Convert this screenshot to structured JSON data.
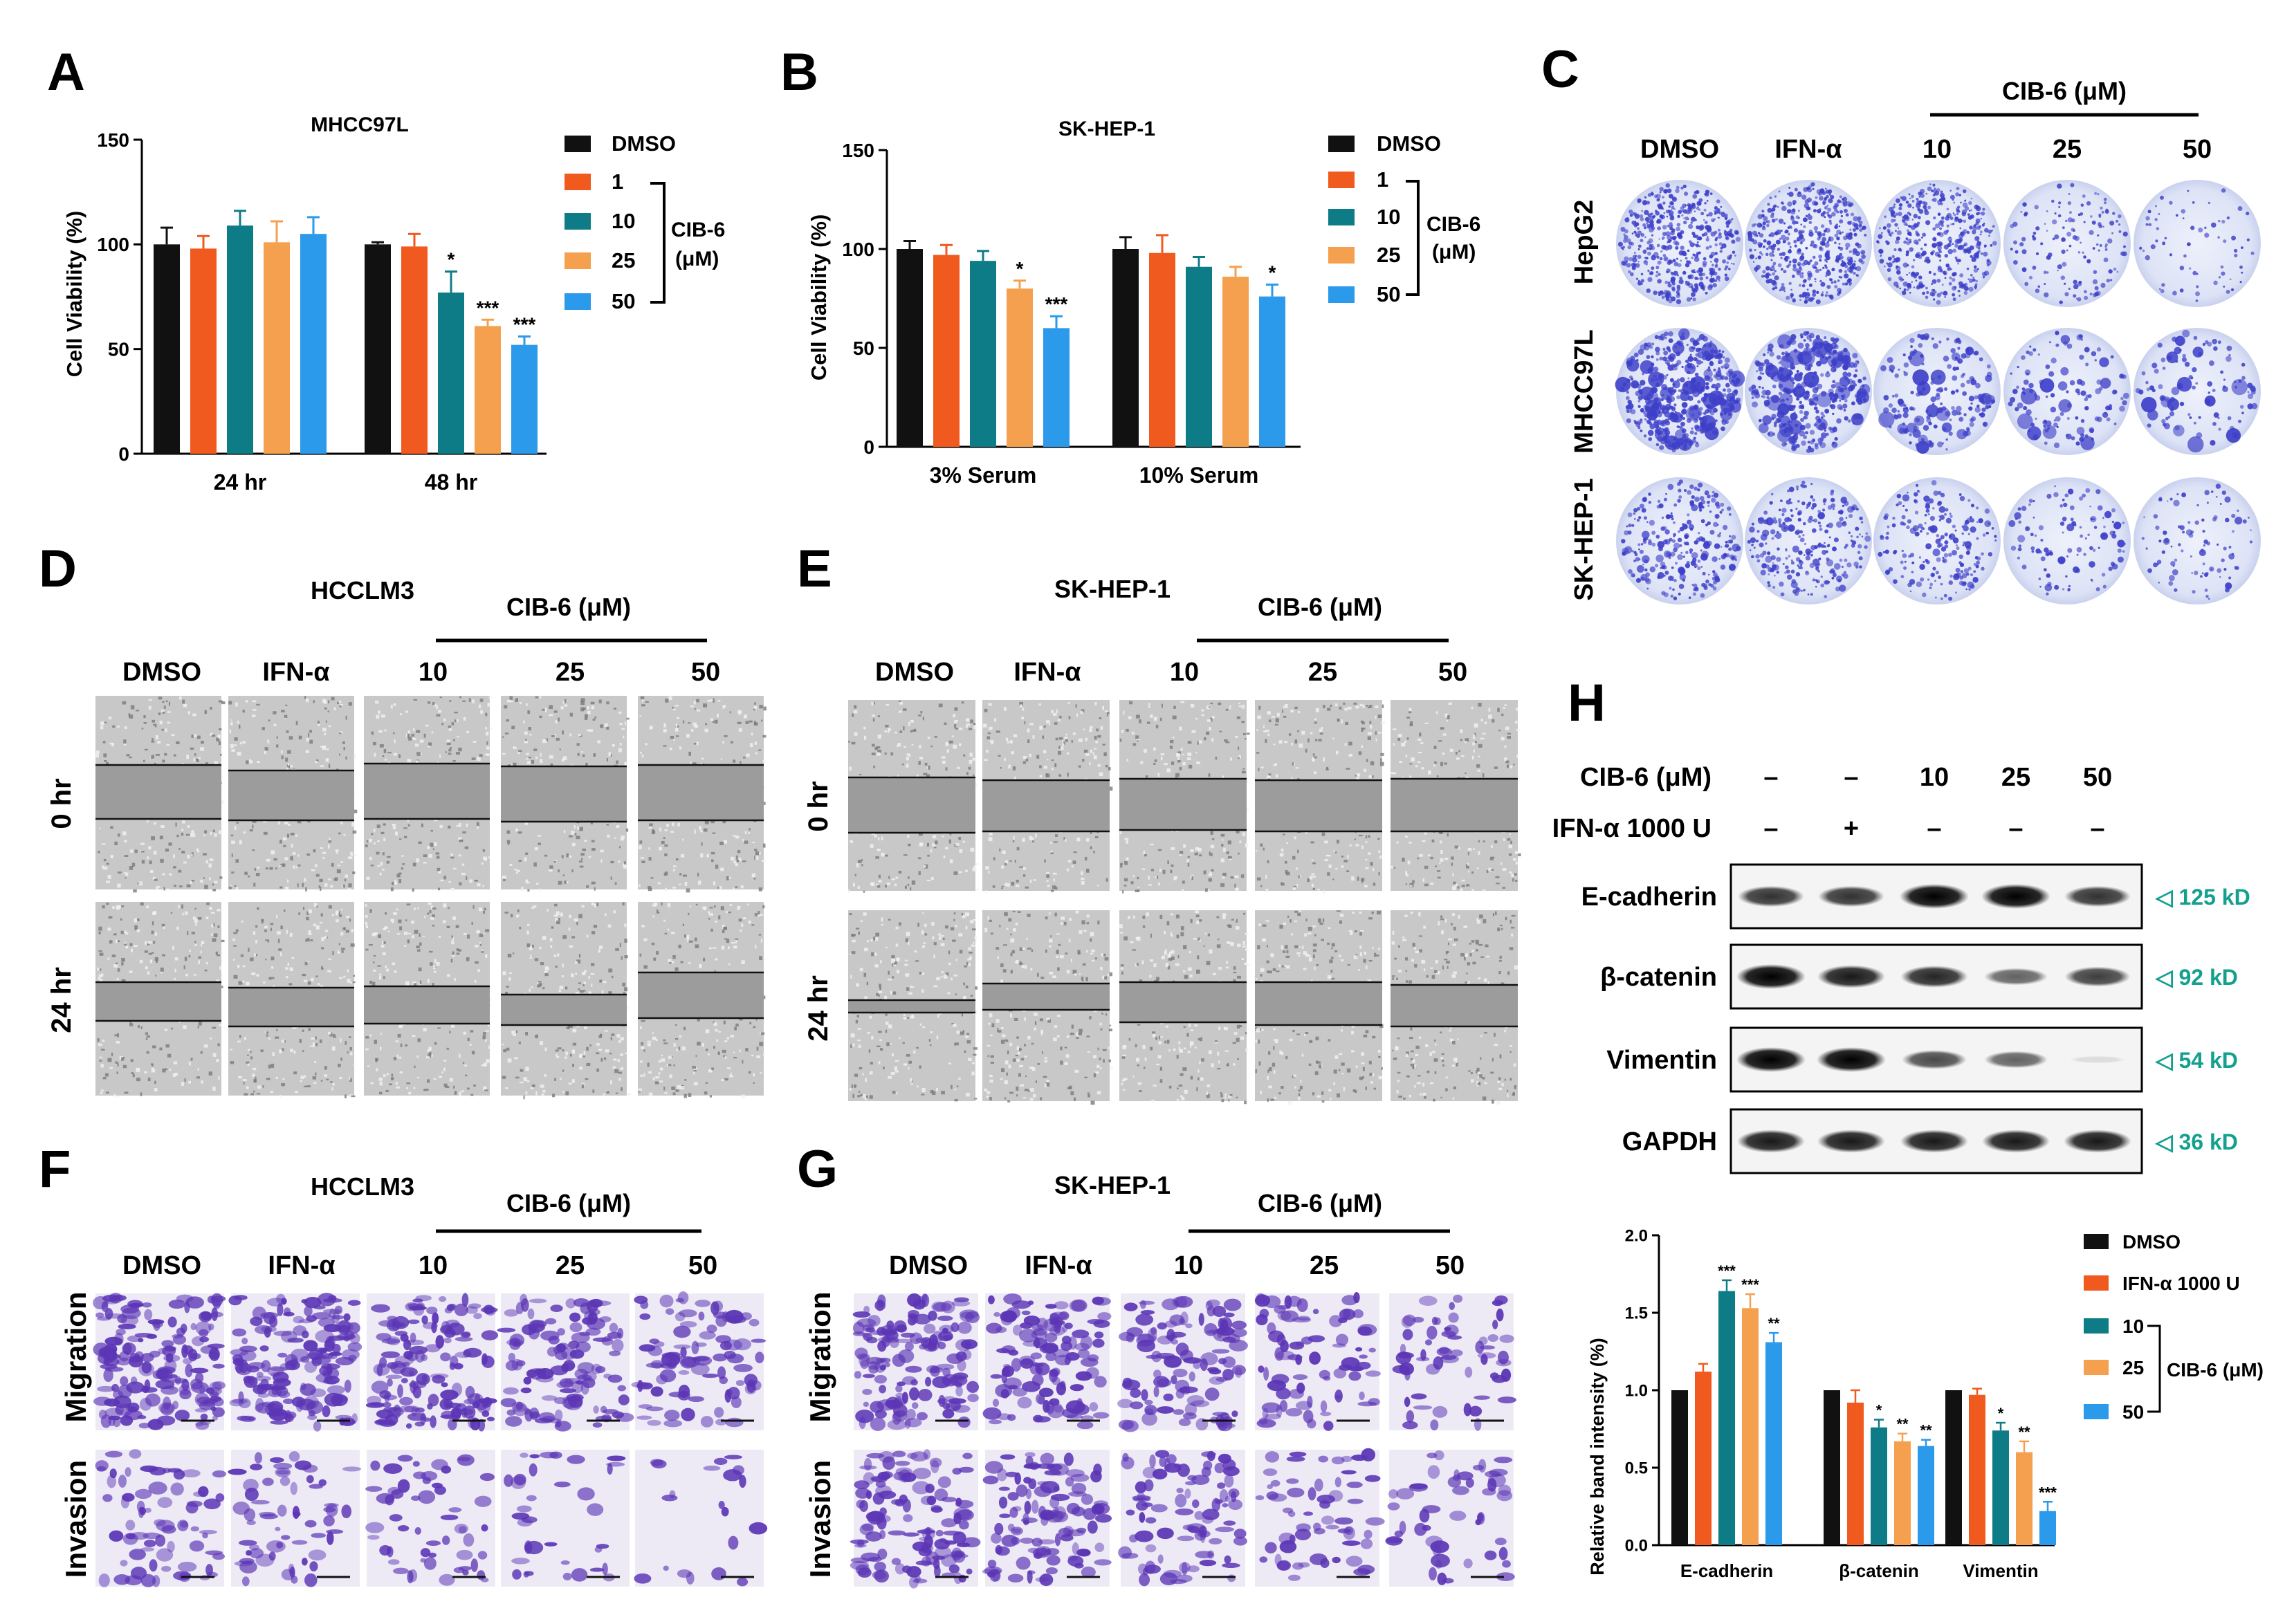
{
  "colors": {
    "dmso": "#111111",
    "c1": "#F05A1E",
    "c10": "#0E7C86",
    "c25": "#F5A04E",
    "c50": "#2B9AEA",
    "kd": "#13A08E",
    "crystal_violet": "#3D3FC8",
    "transwell_violet": "#5B35B5"
  },
  "panels": {
    "A": {
      "letter": "A",
      "chart_data": {
        "type": "bar",
        "title": "MHCC97L",
        "xlabel": "",
        "ylabel": "Cell Viability (%)",
        "ylim": [
          0,
          150
        ],
        "yticks": [
          "0",
          "50",
          "100",
          "150"
        ],
        "categories": [
          "24 hr",
          "48 hr"
        ],
        "series": [
          {
            "name": "DMSO",
            "values": [
              100,
              100
            ],
            "errors": [
              8,
              1
            ],
            "sig": [
              "",
              ""
            ]
          },
          {
            "name": "1",
            "values": [
              98,
              99
            ],
            "errors": [
              6,
              6
            ],
            "sig": [
              "",
              ""
            ]
          },
          {
            "name": "10",
            "values": [
              109,
              77
            ],
            "errors": [
              7,
              10
            ],
            "sig": [
              "",
              "*"
            ]
          },
          {
            "name": "25",
            "values": [
              101,
              61
            ],
            "errors": [
              10,
              3
            ],
            "sig": [
              "",
              "***"
            ]
          },
          {
            "name": "50",
            "values": [
              105,
              52
            ],
            "errors": [
              8,
              4
            ],
            "sig": [
              "",
              "***"
            ]
          }
        ],
        "legend_group": "CIB-6 (μM)",
        "legend_group_line1": "CIB-6",
        "legend_group_line2": "(μM)",
        "legend_position": "right"
      }
    },
    "B": {
      "letter": "B",
      "chart_data": {
        "type": "bar",
        "title": "SK-HEP-1",
        "xlabel": "",
        "ylabel": "Cell Viability (%)",
        "ylim": [
          0,
          150
        ],
        "yticks": [
          "0",
          "50",
          "100",
          "150"
        ],
        "categories": [
          "3% Serum",
          "10% Serum"
        ],
        "series": [
          {
            "name": "DMSO",
            "values": [
              100,
              100
            ],
            "errors": [
              4,
              6
            ],
            "sig": [
              "",
              ""
            ]
          },
          {
            "name": "1",
            "values": [
              97,
              98
            ],
            "errors": [
              5,
              9
            ],
            "sig": [
              "",
              ""
            ]
          },
          {
            "name": "10",
            "values": [
              94,
              91
            ],
            "errors": [
              5,
              5
            ],
            "sig": [
              "",
              ""
            ]
          },
          {
            "name": "25",
            "values": [
              80,
              86
            ],
            "errors": [
              4,
              5
            ],
            "sig": [
              "*",
              ""
            ]
          },
          {
            "name": "50",
            "values": [
              60,
              76
            ],
            "errors": [
              6,
              6
            ],
            "sig": [
              "***",
              "*"
            ]
          }
        ],
        "legend_group": "CIB-6 (μM)",
        "legend_group_line1": "CIB-6",
        "legend_group_line2": "(μM)",
        "legend_position": "right"
      }
    },
    "C": {
      "letter": "C",
      "group_label": "CIB-6 (μM)",
      "columns": [
        "DMSO",
        "IFN-α",
        "10",
        "25",
        "50"
      ],
      "rows": [
        "HepG2",
        "MHCC97L",
        "SK-HEP-1"
      ],
      "colony_density": [
        [
          1.0,
          0.95,
          0.85,
          0.22,
          0.06
        ],
        [
          0.9,
          0.72,
          0.32,
          0.18,
          0.15
        ],
        [
          0.5,
          0.48,
          0.36,
          0.16,
          0.12
        ]
      ]
    },
    "D": {
      "letter": "D",
      "cell_line": "HCCLM3",
      "group_label": "CIB-6 (μM)",
      "columns": [
        "DMSO",
        "IFN-α",
        "10",
        "25",
        "50"
      ],
      "rows": [
        "0 hr",
        "24 hr"
      ]
    },
    "E": {
      "letter": "E",
      "cell_line": "SK-HEP-1",
      "group_label": "CIB-6 (μM)",
      "columns": [
        "DMSO",
        "IFN-α",
        "10",
        "25",
        "50"
      ],
      "rows": [
        "0 hr",
        "24 hr"
      ]
    },
    "F": {
      "letter": "F",
      "cell_line": "HCCLM3",
      "group_label": "CIB-6 (μM)",
      "columns": [
        "DMSO",
        "IFN-α",
        "10",
        "25",
        "50"
      ],
      "rows": [
        "Migration",
        "Invasion"
      ]
    },
    "G": {
      "letter": "G",
      "cell_line": "SK-HEP-1",
      "group_label": "CIB-6 (μM)",
      "columns": [
        "DMSO",
        "IFN-α",
        "10",
        "25",
        "50"
      ],
      "rows": [
        "Migration",
        "Invasion"
      ]
    },
    "H": {
      "letter": "H",
      "treatments": {
        "row1_label": "CIB-6 (μM)",
        "row1_values": [
          "–",
          "–",
          "10",
          "25",
          "50"
        ],
        "row2_label": "IFN-α 1000 U",
        "row2_values": [
          "–",
          "+",
          "–",
          "–",
          "–"
        ]
      },
      "blots": [
        {
          "protein": "E-cadherin",
          "kd": "◁ 125 kD",
          "intensity": [
            0.8,
            0.8,
            1.0,
            1.0,
            0.8
          ]
        },
        {
          "protein": "β-catenin",
          "kd": "◁ 92 kD",
          "intensity": [
            1.0,
            0.9,
            0.85,
            0.6,
            0.75
          ]
        },
        {
          "protein": "Vimentin",
          "kd": "◁ 54 kD",
          "intensity": [
            1.0,
            1.0,
            0.7,
            0.6,
            0.1
          ]
        },
        {
          "protein": "GAPDH",
          "kd": "◁ 36 kD",
          "intensity": [
            0.9,
            0.9,
            0.9,
            0.9,
            0.9
          ]
        }
      ],
      "chart_data": {
        "type": "bar",
        "title": "",
        "xlabel": "",
        "ylabel": "Relative band intensity (%)",
        "ylim": [
          0,
          2.0
        ],
        "yticks": [
          "0.0",
          "0.5",
          "1.0",
          "1.5",
          "2.0"
        ],
        "categories": [
          "E-cadherin",
          "β-catenin",
          "Vimentin"
        ],
        "series": [
          {
            "name": "DMSO",
            "values": [
              1.0,
              1.0,
              1.0
            ],
            "errors": [
              0,
              0,
              0
            ],
            "sig": [
              "",
              "",
              ""
            ]
          },
          {
            "name": "IFN-α 1000 U",
            "values": [
              1.12,
              0.92,
              0.97
            ],
            "errors": [
              0.05,
              0.08,
              0.04
            ],
            "sig": [
              "",
              "",
              ""
            ]
          },
          {
            "name": "10",
            "values": [
              1.64,
              0.76,
              0.74
            ],
            "errors": [
              0.07,
              0.05,
              0.05
            ],
            "sig": [
              "***",
              "*",
              "*"
            ]
          },
          {
            "name": "25",
            "values": [
              1.53,
              0.67,
              0.6
            ],
            "errors": [
              0.09,
              0.05,
              0.07
            ],
            "sig": [
              "***",
              "**",
              "**"
            ]
          },
          {
            "name": "50",
            "values": [
              1.31,
              0.64,
              0.22
            ],
            "errors": [
              0.06,
              0.04,
              0.06
            ],
            "sig": [
              "**",
              "**",
              "***"
            ]
          }
        ],
        "legend_group": "CIB-6 (μM)",
        "legend_position": "right"
      }
    }
  }
}
